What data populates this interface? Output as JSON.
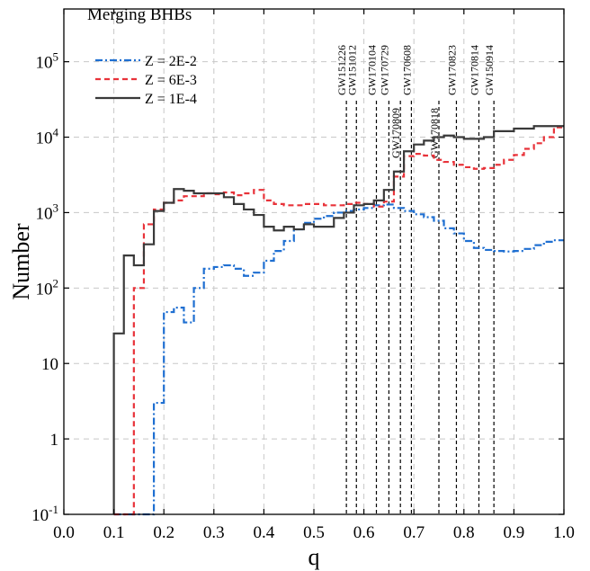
{
  "chart_data": {
    "type": "line",
    "title": "Merging BHBs",
    "xlabel": "q",
    "ylabel": "Number",
    "xlim": [
      0.0,
      1.0
    ],
    "ylim": [
      0.1,
      500000
    ],
    "yscale": "log",
    "grid": true,
    "legend_position": "top-left",
    "x_ticks": [
      0.0,
      0.1,
      0.2,
      0.3,
      0.4,
      0.5,
      0.6,
      0.7,
      0.8,
      0.9,
      1.0
    ],
    "x_tick_labels": [
      "0.0",
      "0.1",
      "0.2",
      "0.3",
      "0.4",
      "0.5",
      "0.6",
      "0.7",
      "0.8",
      "0.9",
      "1.0"
    ],
    "y_ticks": [
      0.1,
      1,
      10,
      100,
      1000,
      10000,
      100000
    ],
    "y_tick_labels": [
      {
        "base": "10",
        "sup": "-1"
      },
      {
        "base": "1",
        "sup": ""
      },
      {
        "base": "10",
        "sup": ""
      },
      {
        "base": "10",
        "sup": "2"
      },
      {
        "base": "10",
        "sup": "3"
      },
      {
        "base": "10",
        "sup": "4"
      },
      {
        "base": "10",
        "sup": "5"
      }
    ],
    "bin_edges": [
      0.1,
      0.12,
      0.14,
      0.16,
      0.18,
      0.2,
      0.22,
      0.24,
      0.26,
      0.28,
      0.3,
      0.32,
      0.34,
      0.36,
      0.38,
      0.4,
      0.42,
      0.44,
      0.46,
      0.48,
      0.5,
      0.52,
      0.54,
      0.56,
      0.58,
      0.6,
      0.62,
      0.64,
      0.66,
      0.68,
      0.7,
      0.72,
      0.74,
      0.76,
      0.78,
      0.8,
      0.82,
      0.84,
      0.86,
      0.88,
      0.9,
      0.92,
      0.94,
      0.96,
      0.98,
      1.0
    ],
    "series": [
      {
        "name": "Z = 2E-2",
        "color": "#1f6fd1",
        "dash": "dashdot",
        "start": 0.1,
        "values": [
          0.1,
          0.1,
          0.1,
          0.1,
          3,
          48,
          55,
          35,
          100,
          180,
          190,
          200,
          180,
          145,
          160,
          230,
          310,
          420,
          600,
          730,
          830,
          900,
          1000,
          1050,
          1100,
          1150,
          1250,
          1280,
          1150,
          1050,
          950,
          870,
          780,
          620,
          530,
          420,
          340,
          320,
          310,
          305,
          310,
          330,
          370,
          410,
          430
        ]
      },
      {
        "name": "Z = 6E-3",
        "color": "#e8333a",
        "dash": "dash",
        "start": 0.1,
        "values": [
          0.1,
          0.1,
          100,
          700,
          1100,
          1350,
          1450,
          1650,
          1650,
          1800,
          1750,
          1850,
          1700,
          1800,
          2000,
          1450,
          1300,
          1250,
          1250,
          1300,
          1300,
          1250,
          1250,
          1300,
          1350,
          1300,
          1200,
          1400,
          3000,
          5600,
          6000,
          5700,
          5000,
          4700,
          4300,
          4000,
          3800,
          3900,
          4300,
          5000,
          5800,
          7000,
          8300,
          10000,
          13500
        ]
      },
      {
        "name": "Z = 1E-4",
        "color": "#3a3a3a",
        "dash": "solid",
        "start": 0.1,
        "values": [
          25,
          270,
          200,
          380,
          1050,
          1350,
          2050,
          1950,
          1800,
          1800,
          1800,
          1600,
          1300,
          1100,
          930,
          650,
          580,
          650,
          600,
          700,
          650,
          650,
          850,
          1000,
          1250,
          1300,
          1450,
          2000,
          3500,
          6500,
          8000,
          9000,
          10000,
          10500,
          10000,
          9500,
          9500,
          10000,
          12000,
          12000,
          13000,
          13000,
          14000,
          14000,
          14000
        ]
      }
    ],
    "events": [
      {
        "name": "GW151226",
        "q": 0.565,
        "label_row": "upper"
      },
      {
        "name": "GW151012",
        "q": 0.585,
        "label_row": "upper"
      },
      {
        "name": "GW170104",
        "q": 0.625,
        "label_row": "upper"
      },
      {
        "name": "GW170729",
        "q": 0.65,
        "label_row": "upper"
      },
      {
        "name": "GW170809",
        "q": 0.673,
        "label_row": "lower"
      },
      {
        "name": "GW170608",
        "q": 0.695,
        "label_row": "upper"
      },
      {
        "name": "GW170818",
        "q": 0.75,
        "label_row": "lower"
      },
      {
        "name": "GW170823",
        "q": 0.785,
        "label_row": "upper"
      },
      {
        "name": "GW170814",
        "q": 0.83,
        "label_row": "upper"
      },
      {
        "name": "GW150914",
        "q": 0.86,
        "label_row": "upper"
      }
    ]
  }
}
